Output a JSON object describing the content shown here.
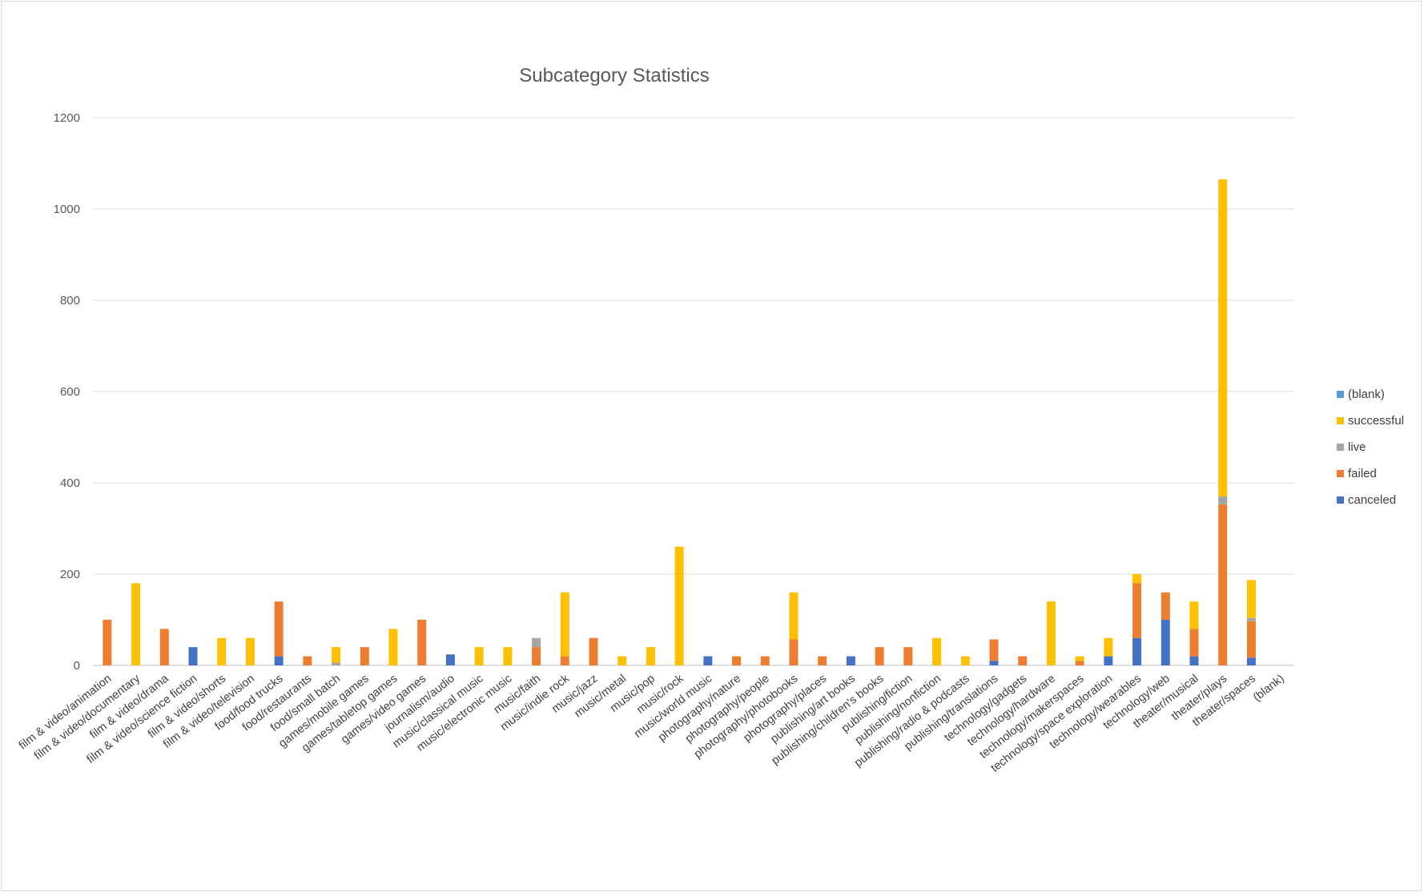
{
  "chart_data": {
    "type": "bar",
    "stacked": true,
    "title": "Subcategory Statistics",
    "xlabel": "",
    "ylabel": "",
    "ylim": [
      0,
      1200
    ],
    "yticks": [
      0,
      200,
      400,
      600,
      800,
      1000,
      1200
    ],
    "grid": true,
    "legend_position": "right",
    "categories": [
      "film & video/animation",
      "film & video/documentary",
      "film & video/drama",
      "film & video/science fiction",
      "film & video/shorts",
      "film & video/television",
      "food/food trucks",
      "food/restaurants",
      "food/small batch",
      "games/mobile games",
      "games/tabletop games",
      "games/video games",
      "journalism/audio",
      "music/classical music",
      "music/electronic music",
      "music/faith",
      "music/indie rock",
      "music/jazz",
      "music/metal",
      "music/pop",
      "music/rock",
      "music/world music",
      "photography/nature",
      "photography/people",
      "photography/photobooks",
      "photography/places",
      "publishing/art books",
      "publishing/children's books",
      "publishing/fiction",
      "publishing/nonfiction",
      "publishing/radio & podcasts",
      "publishing/translations",
      "technology/gadgets",
      "technology/hardware",
      "technology/makerspaces",
      "technology/space exploration",
      "technology/wearables",
      "technology/web",
      "theater/musical",
      "theater/plays",
      "theater/spaces",
      "(blank)"
    ],
    "series": [
      {
        "name": "canceled",
        "color": "#4472C4",
        "values": [
          0,
          0,
          0,
          40,
          0,
          0,
          20,
          0,
          0,
          0,
          0,
          0,
          24,
          0,
          0,
          0,
          0,
          0,
          0,
          0,
          0,
          20,
          0,
          0,
          0,
          0,
          20,
          0,
          0,
          0,
          0,
          10,
          0,
          0,
          0,
          20,
          60,
          100,
          20,
          0,
          17,
          0
        ]
      },
      {
        "name": "failed",
        "color": "#ED7D31",
        "values": [
          100,
          0,
          80,
          0,
          0,
          0,
          120,
          20,
          0,
          40,
          0,
          100,
          0,
          0,
          0,
          40,
          20,
          60,
          0,
          0,
          0,
          0,
          20,
          20,
          57,
          20,
          0,
          40,
          40,
          0,
          0,
          47,
          20,
          0,
          10,
          0,
          120,
          60,
          60,
          353,
          80,
          0
        ]
      },
      {
        "name": "live",
        "color": "#A5A5A5",
        "values": [
          0,
          0,
          0,
          0,
          0,
          0,
          0,
          0,
          6,
          0,
          0,
          0,
          0,
          0,
          0,
          20,
          0,
          0,
          0,
          0,
          0,
          0,
          0,
          0,
          0,
          0,
          0,
          0,
          0,
          0,
          0,
          0,
          0,
          0,
          0,
          0,
          0,
          0,
          0,
          17,
          7,
          0
        ]
      },
      {
        "name": "successful",
        "color": "#FFC000",
        "values": [
          0,
          180,
          0,
          0,
          60,
          60,
          0,
          0,
          34,
          0,
          80,
          0,
          0,
          40,
          40,
          0,
          140,
          0,
          20,
          40,
          260,
          0,
          0,
          0,
          103,
          0,
          0,
          0,
          0,
          60,
          20,
          0,
          0,
          140,
          10,
          40,
          20,
          0,
          60,
          695,
          83,
          0
        ]
      },
      {
        "name": "(blank)",
        "color": "#5B9BD5",
        "values": [
          0,
          0,
          0,
          0,
          0,
          0,
          0,
          0,
          0,
          0,
          0,
          0,
          0,
          0,
          0,
          0,
          0,
          0,
          0,
          0,
          0,
          0,
          0,
          0,
          0,
          0,
          0,
          0,
          0,
          0,
          0,
          0,
          0,
          0,
          0,
          0,
          0,
          0,
          0,
          0,
          0,
          0
        ]
      }
    ]
  }
}
